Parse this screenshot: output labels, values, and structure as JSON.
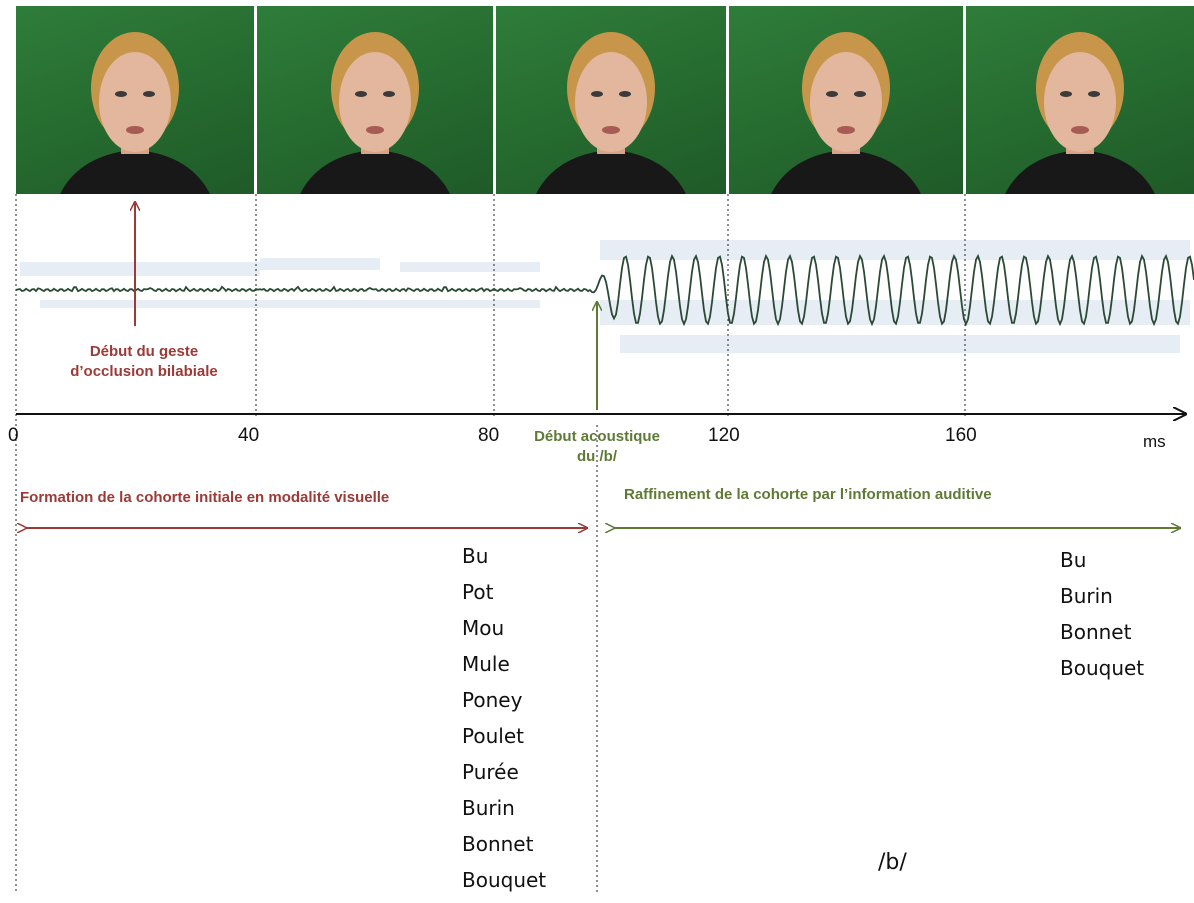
{
  "frames": [
    {
      "label": "frame-0ms"
    },
    {
      "label": "frame-40ms"
    },
    {
      "label": "frame-80ms"
    },
    {
      "label": "frame-120ms"
    },
    {
      "label": "frame-160ms"
    }
  ],
  "annotations": {
    "visual_onset": "Début du geste\nd’occlusion bilabiale",
    "acoustic_onset": "Début acoustique\ndu /b/"
  },
  "axis": {
    "ticks": [
      "0",
      "40",
      "80",
      "120",
      "160"
    ],
    "unit": "ms"
  },
  "phases": {
    "visual": "Formation de la cohorte initiale en modalité visuelle",
    "auditory": "Raffinement de la cohorte par l’information auditive"
  },
  "cohorts": {
    "visual": [
      "Bu",
      "Pot",
      "Mou",
      "Mule",
      "Poney",
      "Poulet",
      "Purée",
      "Burin",
      "Bonnet",
      "Bouquet"
    ],
    "auditory": [
      "Bu",
      "Burin",
      "Bonnet",
      "Bouquet"
    ]
  },
  "phoneme": "/b/",
  "colors": {
    "visual": "#9b3a36",
    "auditory": "#5e7a35",
    "waveform": "#2b4a36",
    "background_green": "#2f7d3a"
  }
}
